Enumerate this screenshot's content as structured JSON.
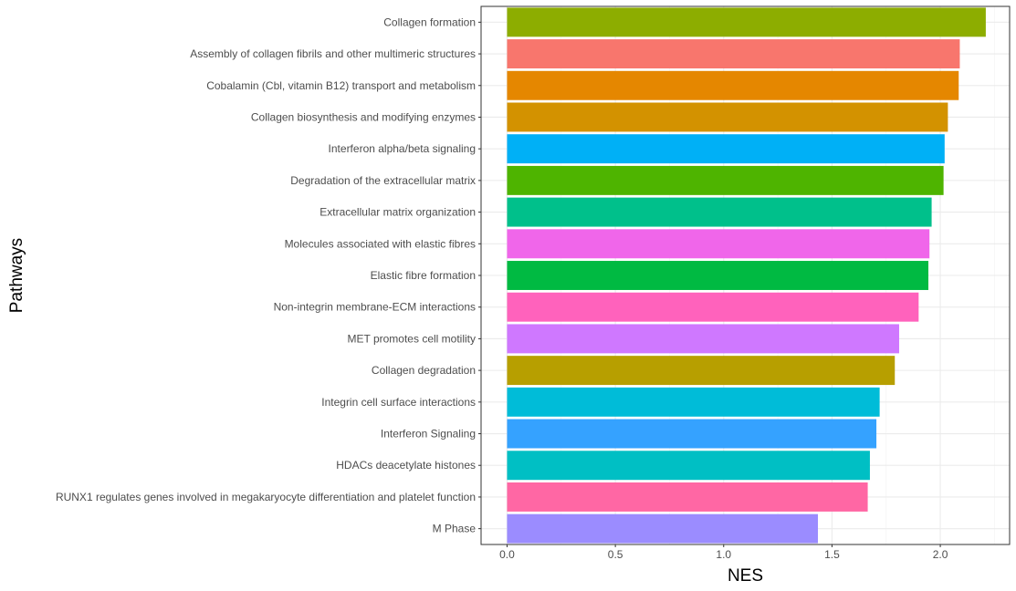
{
  "chart_data": {
    "type": "bar",
    "orientation": "horizontal",
    "xlabel": "NES",
    "ylabel": "Pathways",
    "xlim": [
      -0.12,
      2.32
    ],
    "xticks": [
      0.0,
      0.5,
      1.0,
      1.5,
      2.0
    ],
    "xtick_labels": [
      "0.0",
      "0.5",
      "1.0",
      "1.5",
      "2.0"
    ],
    "grid": true,
    "legend": "none",
    "categories": [
      "Collagen formation",
      "Assembly of collagen fibrils and other multimeric structures",
      "Cobalamin (Cbl, vitamin B12) transport and metabolism",
      "Collagen biosynthesis and modifying enzymes",
      "Interferon alpha/beta signaling",
      "Degradation of the extracellular matrix",
      "Extracellular matrix organization",
      "Molecules associated with elastic fibres",
      "Elastic fibre formation",
      "Non-integrin membrane-ECM interactions",
      "MET promotes cell motility",
      "Collagen degradation",
      "Integrin cell surface interactions",
      "Interferon Signaling",
      "HDACs deacetylate histones",
      "RUNX1 regulates genes involved in megakaryocyte differentiation and platelet function",
      "M Phase"
    ],
    "values": [
      2.21,
      2.09,
      2.085,
      2.035,
      2.02,
      2.015,
      1.96,
      1.95,
      1.945,
      1.9,
      1.81,
      1.79,
      1.72,
      1.705,
      1.675,
      1.665,
      1.435
    ],
    "colors": [
      "#8DAD00",
      "#F8766D",
      "#E58700",
      "#D39200",
      "#00B0F6",
      "#4EB400",
      "#00C08B",
      "#F066EA",
      "#00BA42",
      "#FF62BC",
      "#CF78FF",
      "#B79F00",
      "#00BCD8",
      "#35A2FF",
      "#00BFC4",
      "#FF67A4",
      "#9B8CFF"
    ]
  }
}
